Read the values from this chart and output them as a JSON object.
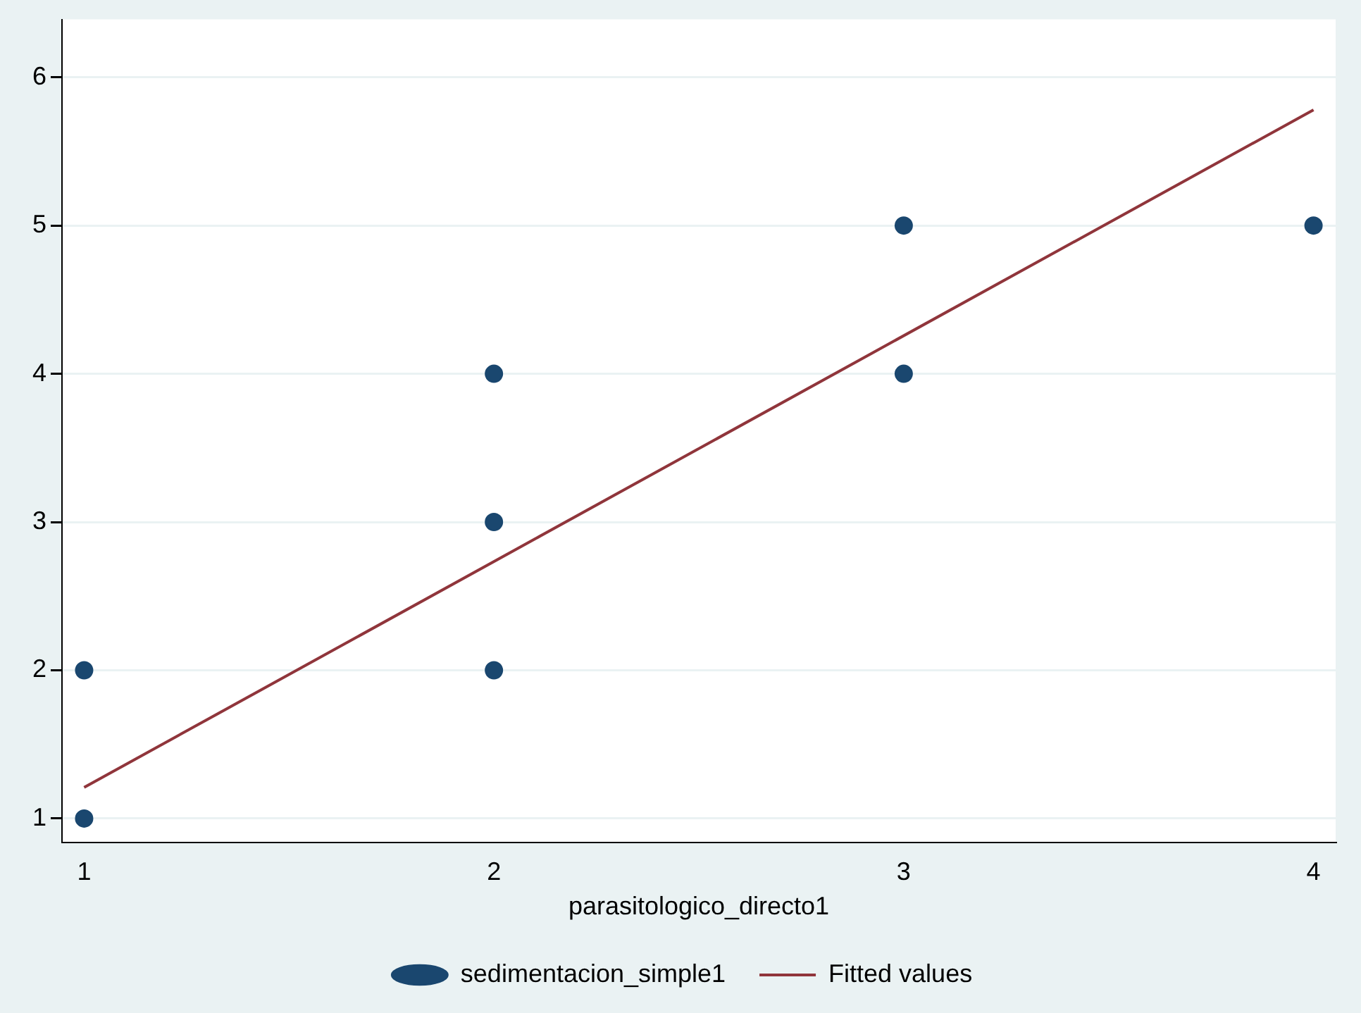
{
  "chart_data": {
    "type": "scatter",
    "xlabel": "parasitologico_directo1",
    "xlim": [
      0.946,
      4.054
    ],
    "xticks": [
      1,
      2,
      3,
      4
    ],
    "ylim": [
      0.84,
      6.39
    ],
    "yticks": [
      1,
      2,
      3,
      4,
      5,
      6
    ],
    "grid": "y",
    "legend": "bottom",
    "marker": "circle",
    "series": [
      {
        "name": "sedimentacion_simple1",
        "color": "#1a476f",
        "x": [
          1,
          1,
          2,
          2,
          2,
          3,
          3,
          4
        ],
        "values": [
          1,
          2,
          2,
          3,
          4,
          4,
          5,
          5
        ]
      },
      {
        "name": "Fitted values",
        "type": "line",
        "color": "#90353b",
        "x": [
          1,
          4
        ],
        "values": [
          1.21,
          5.78
        ],
        "marker": "none"
      }
    ]
  }
}
